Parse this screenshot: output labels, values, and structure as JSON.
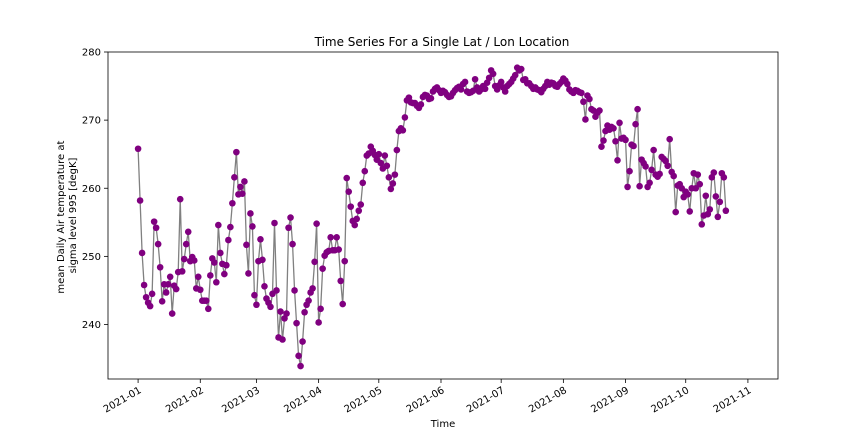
{
  "chart_data": {
    "type": "line",
    "title": "Time Series For a Single Lat / Lon Location",
    "xlabel": "Time",
    "ylabel_lines": [
      "mean Daily Air temperature at",
      "sigma level 995 [degK]"
    ],
    "ylim": [
      232,
      280
    ],
    "xlim": [
      "2020-12-17",
      "2021-11-16"
    ],
    "yticks": [
      240,
      250,
      260,
      270,
      280
    ],
    "xticks": [
      "2021-01",
      "2021-02",
      "2021-03",
      "2021-04",
      "2021-05",
      "2021-06",
      "2021-07",
      "2021-08",
      "2021-09",
      "2021-10",
      "2021-11"
    ],
    "x_start": "2021-01-01",
    "grid": false,
    "line_color": "#808080",
    "marker_color": "#800080",
    "series": [
      {
        "values": [
          265.8,
          258.2,
          250.5,
          245.8,
          244.0,
          243.2,
          242.7,
          244.5,
          255.1,
          254.2,
          251.8,
          248.4,
          243.4,
          245.9,
          244.7,
          245.9,
          247.0,
          241.6,
          245.7,
          245.2,
          247.7,
          258.4,
          247.8,
          249.6,
          251.8,
          253.6,
          249.3,
          249.9,
          249.4,
          245.3,
          247.0,
          245.1,
          243.5,
          243.5,
          243.5,
          242.3,
          247.2,
          249.7,
          249.1,
          246.2,
          254.6,
          250.5,
          248.9,
          247.4,
          248.7,
          252.4,
          254.3,
          257.8,
          261.6,
          265.3,
          259.1,
          260.2,
          259.2,
          261.0,
          251.7,
          247.5,
          256.3,
          254.4,
          244.3,
          242.9,
          249.3,
          252.5,
          249.5,
          245.6,
          243.8,
          243.2,
          242.6,
          244.5,
          254.9,
          245.0,
          238.1,
          241.9,
          237.8,
          240.9,
          241.6,
          254.2,
          255.7,
          251.8,
          245.0,
          240.2,
          235.4,
          233.9,
          237.5,
          241.8,
          242.9,
          243.5,
          244.7,
          245.3,
          249.2,
          254.8,
          240.3,
          242.3,
          248.2,
          250.1,
          250.6,
          250.8,
          252.8,
          250.9,
          250.9,
          252.8,
          251.0,
          246.4,
          243.0,
          249.3,
          261.5,
          259.5,
          257.3,
          255.2,
          254.6,
          255.5,
          256.7,
          257.6,
          260.8,
          262.5,
          264.8,
          265.1,
          266.1,
          265.5,
          264.9,
          264.2,
          265.0,
          263.7,
          262.9,
          264.8,
          263.3,
          261.6,
          259.9,
          260.7,
          262.0,
          265.6,
          268.4,
          268.8,
          268.5,
          270.4,
          272.9,
          273.3,
          272.6,
          272.5,
          272.5,
          272.1,
          271.8,
          272.3,
          273.4,
          273.7,
          273.6,
          273.1,
          273.2,
          274.2,
          274.6,
          274.8,
          274.4,
          274.0,
          274.3,
          274.1,
          273.7,
          273.4,
          273.5,
          274.0,
          274.4,
          274.7,
          274.9,
          274.5,
          275.3,
          275.6,
          274.2,
          274.0,
          274.1,
          274.3,
          276.0,
          274.8,
          274.2,
          274.5,
          275.0,
          274.6,
          275.5,
          276.2,
          277.3,
          276.8,
          275.0,
          274.5,
          275.1,
          275.6,
          274.8,
          274.2,
          275.0,
          275.3,
          275.6,
          276.1,
          276.6,
          277.7,
          277.3,
          277.5,
          275.9,
          276.0,
          275.4,
          275.4,
          275.0,
          274.6,
          274.8,
          274.5,
          274.4,
          274.1,
          274.6,
          275.0,
          275.6,
          275.2,
          275.5,
          275.4,
          275.0,
          274.9,
          275.3,
          275.6,
          276.1,
          275.8,
          275.3,
          274.5,
          274.2,
          274.0,
          274.4,
          274.3,
          274.1,
          274.0,
          272.7,
          270.1,
          273.6,
          273.1,
          271.6,
          271.4,
          270.5,
          271.1,
          271.4,
          266.1,
          267.0,
          268.4,
          269.2,
          268.6,
          269.0,
          268.8,
          266.9,
          264.1,
          269.6,
          267.3,
          267.4,
          267.1,
          260.2,
          262.5,
          266.4,
          266.2,
          269.4,
          271.6,
          260.3,
          264.2,
          263.7,
          263.2,
          260.2,
          260.8,
          262.7,
          265.6,
          262.0,
          261.7,
          262.1,
          264.6,
          264.3,
          264.0,
          263.3,
          267.2,
          262.4,
          261.8,
          256.5,
          260.4,
          260.6,
          260.0,
          258.7,
          259.5,
          259.1,
          256.6,
          260.0,
          262.2,
          260.0,
          262.0,
          260.6,
          254.7,
          256.0,
          258.9,
          256.2,
          256.9,
          261.6,
          262.3,
          258.8,
          255.8,
          258.0,
          262.2,
          261.6,
          256.7
        ]
      }
    ]
  }
}
